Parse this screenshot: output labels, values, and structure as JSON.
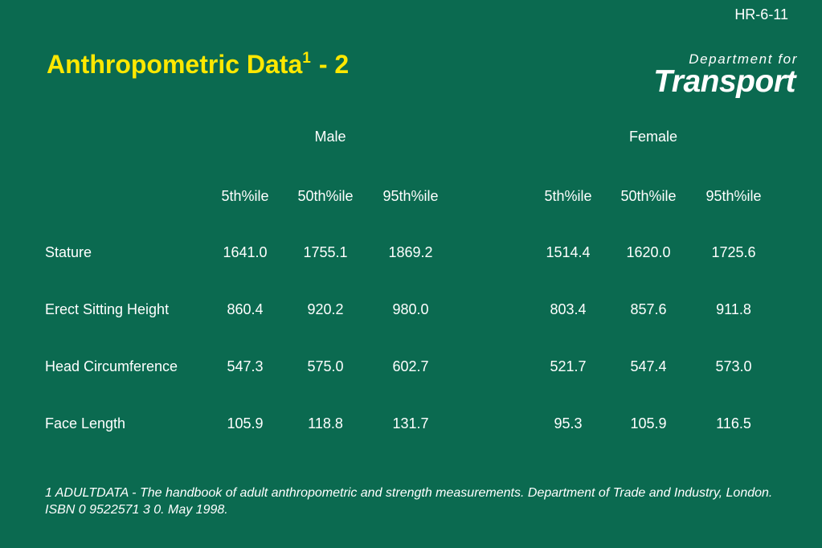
{
  "slide_id": "HR-6-11",
  "title": {
    "text": "Anthropometric Data",
    "superscript": "1",
    "suffix": "- 2"
  },
  "logo": {
    "line1": "Department for",
    "line2": "Transport"
  },
  "table": {
    "groups": [
      "Male",
      "Female"
    ],
    "columns": [
      [
        "5th%ile",
        "50th%ile",
        "95th%ile"
      ],
      [
        "5th%ile",
        "50th%ile",
        "95th%ile"
      ]
    ],
    "rows": [
      {
        "label": "Stature",
        "values": [
          "1641.0",
          "1755.1",
          "1869.2",
          "1514.4",
          "1620.0",
          "1725.6"
        ]
      },
      {
        "label": "Erect Sitting Height",
        "values": [
          "860.4",
          "920.2",
          "980.0",
          "803.4",
          "857.6",
          "911.8"
        ]
      },
      {
        "label": "Head Circumference",
        "values": [
          "547.3",
          "575.0",
          "602.7",
          "521.7",
          "547.4",
          "573.0"
        ]
      },
      {
        "label": "Face Length",
        "values": [
          "105.9",
          "118.8",
          "131.7",
          "95.3",
          "105.9",
          "116.5"
        ]
      }
    ]
  },
  "footnote": "1 ADULTDATA - The handbook of adult anthropometric and strength measurements. Department of Trade and Industry, London. ISBN 0 9522571 3 0. May 1998."
}
